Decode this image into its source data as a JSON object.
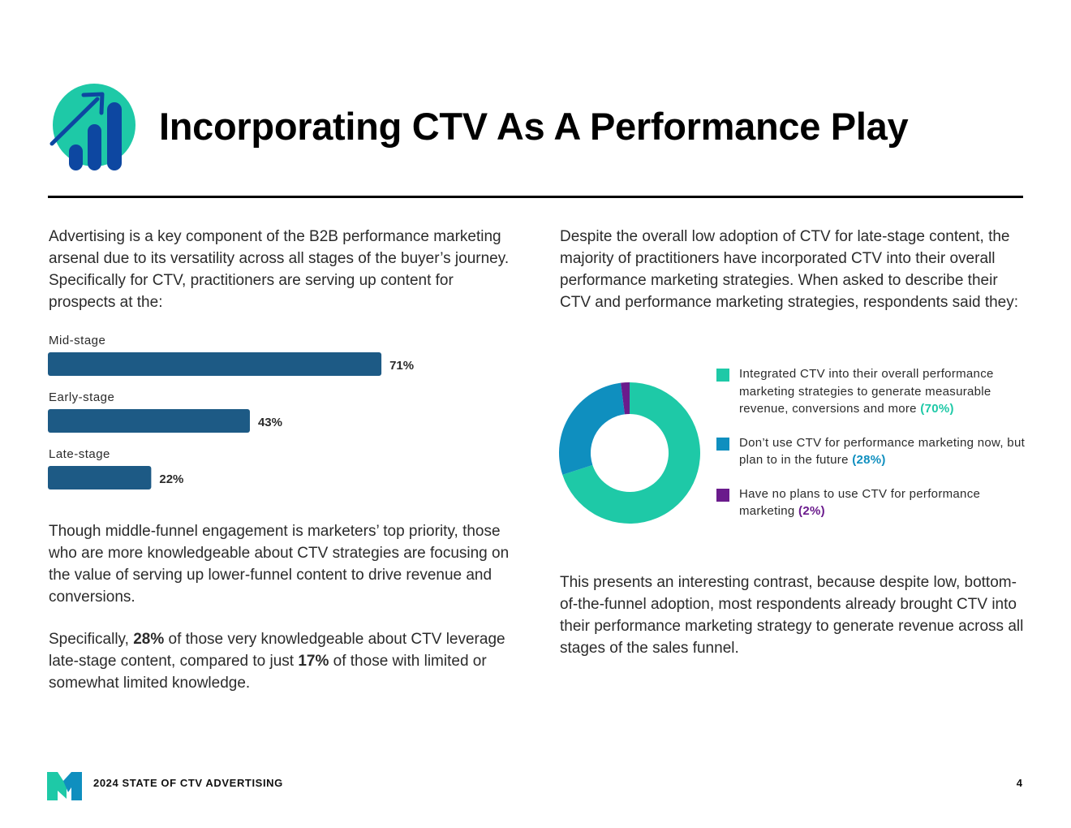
{
  "header": {
    "title": "Incorporating CTV As A Performance Play",
    "icon": "growth-chart-icon"
  },
  "left_column": {
    "intro": "Advertising is a key component of the B2B performance marketing arsenal due to its versatility across all stages of the buyer’s journey. Specifically for CTV, practitioners are serving up content for prospects at the:",
    "note_1": "Though middle-funnel engagement is marketers’ top priority, those who are more knowledgeable about CTV strategies are focusing on the value of serving up lower-funnel content to drive revenue and conversions.",
    "note_2": {
      "before_1": "Specifically, ",
      "bold_1": "28%",
      "before_2": " of those very knowledgeable about CTV leverage late-stage content, compared to just ",
      "bold_2": "17%",
      "after": " of those with limited or somewhat limited knowledge."
    }
  },
  "right_column": {
    "intro": "Despite the overall low adoption of CTV for late-stage content, the majority of practitioners have incorporated CTV into their overall performance marketing strategies. When asked to describe their CTV and performance marketing strategies, respondents said they:",
    "closing": "This presents an interesting contrast, because despite low, bottom-of-the-funnel adoption, most respondents already brought CTV into their performance marketing strategy to generate revenue across all stages of the sales funnel."
  },
  "chart_data": [
    {
      "type": "bar",
      "orientation": "horizontal",
      "categories": [
        "Mid-stage",
        "Early-stage",
        "Late-stage"
      ],
      "values": [
        71,
        43,
        22
      ],
      "value_labels": [
        "71%",
        "43%",
        "22%"
      ],
      "unit": "%",
      "xlim": [
        0,
        100
      ],
      "color": "#1d5a85"
    },
    {
      "type": "pie",
      "style": "donut",
      "categories": [
        "Integrated CTV into their overall performance marketing strategies to generate measurable revenue, conversions and more",
        "Don’t use CTV for performance marketing now, but plan to in the future",
        "Have no plans to use CTV for performance marketing"
      ],
      "values": [
        70,
        28,
        2
      ],
      "value_labels": [
        "(70%)",
        "(28%)",
        "(2%)"
      ],
      "colors": [
        "#1ec9a7",
        "#0f8fbf",
        "#6a1b8c"
      ],
      "legend_position": "right"
    }
  ],
  "footer": {
    "logo": "brand-logo-icon",
    "text": "2024 STATE OF CTV ADVERTISING",
    "page_number": "4"
  },
  "colors": {
    "accent_teal": "#1ec9a7",
    "accent_blue": "#0f8fbf",
    "accent_purple": "#6a1b8c",
    "bar_blue": "#1d5a85",
    "icon_navy": "#0d47a1"
  }
}
